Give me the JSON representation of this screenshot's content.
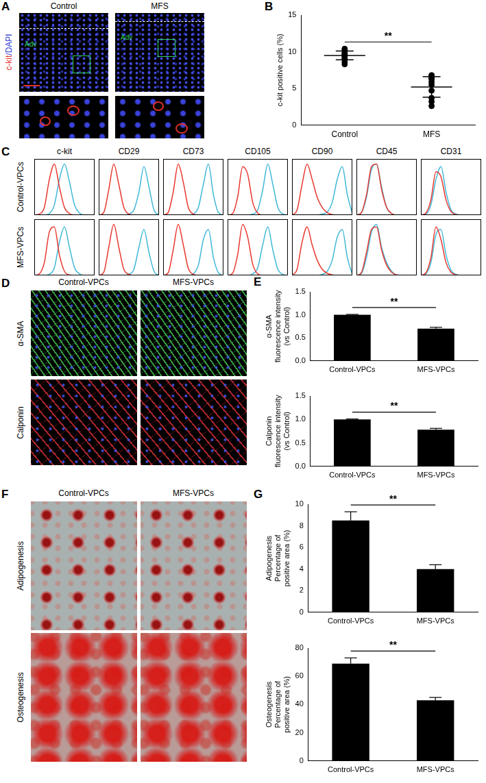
{
  "images": [
    {
      "panel": "A",
      "columns": [
        "Control",
        "MFS"
      ],
      "label": [
        {
          "text": "c-kit",
          "color": "#e0302a"
        },
        {
          "text": "/DAPI",
          "color": "#2a3ad8"
        }
      ],
      "annotation": "Adv"
    },
    {
      "panel": "D",
      "columns": [
        "Control-VPCs",
        "MFS-VPCs"
      ],
      "rows": [
        "α-SMA",
        "Calponin"
      ]
    },
    {
      "panel": "F",
      "columns": [
        "Control-VPCs",
        "MFS-VPCs"
      ],
      "rows": [
        "Adipogenesis",
        "Osteogenesis"
      ]
    }
  ],
  "chart_data": [
    {
      "panel": "B",
      "type": "scatter",
      "categories": [
        "Control",
        "MFS"
      ],
      "values": [
        [
          10.4,
          10.2,
          9.9,
          9.7,
          9.6,
          9.5,
          9.4,
          9.2,
          9.0,
          8.9,
          8.6,
          8.3
        ],
        [
          6.8,
          6.7,
          6.4,
          6.3,
          5.9,
          5.5,
          4.7,
          3.7,
          3.2,
          2.6
        ]
      ],
      "mean": [
        9.5,
        5.2
      ],
      "error": [
        0.6,
        1.4
      ],
      "y_label": "c-kit positive cells (%)",
      "ylim": [
        0,
        15
      ],
      "yticks": [
        0,
        5,
        10,
        15
      ],
      "annotation": "**",
      "color": "#000000",
      "marker": "circle",
      "grid": false
    },
    {
      "panel": "C",
      "type": "line",
      "columns": [
        "c-kit",
        "CD29",
        "CD73",
        "CD105",
        "CD90",
        "CD45",
        "CD31"
      ],
      "rows": [
        "Control-VPCs",
        "MFS-VPCs"
      ],
      "x": [
        0,
        1,
        2,
        3,
        4,
        5,
        6,
        7,
        8,
        9,
        10,
        11,
        12
      ],
      "xlim": [
        0,
        12
      ],
      "ylim": [
        0,
        1.1
      ],
      "tick_labels": false,
      "grid": false,
      "colors": [
        "#e8392f",
        "#41b8d8"
      ],
      "histograms": [
        [
          [
            [
              0,
              0.02,
              0.15,
              0.7,
              1.0,
              0.55,
              0.15,
              0.03,
              0,
              0,
              0,
              0,
              0
            ],
            [
              0,
              0,
              0,
              0.03,
              0.2,
              0.7,
              1.0,
              0.65,
              0.2,
              0.04,
              0,
              0,
              0
            ]
          ],
          [
            [
              0,
              0.05,
              0.5,
              1.0,
              0.6,
              0.15,
              0.02,
              0,
              0,
              0,
              0,
              0,
              0
            ],
            [
              0,
              0,
              0,
              0,
              0,
              0,
              0.02,
              0.1,
              0.45,
              0.95,
              0.55,
              0.1,
              0
            ]
          ],
          [
            [
              0,
              0.05,
              0.45,
              1.0,
              0.65,
              0.15,
              0.02,
              0,
              0,
              0,
              0,
              0,
              0
            ],
            [
              0,
              0,
              0,
              0,
              0,
              0,
              0.02,
              0.15,
              0.6,
              1.0,
              0.4,
              0.05,
              0
            ]
          ],
          [
            [
              0,
              0.03,
              0.35,
              0.95,
              0.8,
              0.25,
              0.04,
              0,
              0,
              0,
              0,
              0,
              0
            ],
            [
              0,
              0,
              0,
              0,
              0,
              0.02,
              0.1,
              0.5,
              1.0,
              0.6,
              0.15,
              0.02,
              0
            ]
          ],
          [
            [
              0,
              0.1,
              0.6,
              1.0,
              0.7,
              0.35,
              0.15,
              0.05,
              0.01,
              0,
              0,
              0,
              0
            ],
            [
              0,
              0,
              0,
              0,
              0,
              0,
              0.02,
              0.06,
              0.25,
              0.7,
              0.95,
              0.4,
              0.03
            ]
          ],
          [
            [
              0,
              0.05,
              0.4,
              0.95,
              1.0,
              0.5,
              0.15,
              0.03,
              0,
              0,
              0,
              0,
              0
            ],
            [
              0,
              0.05,
              0.35,
              0.9,
              1.0,
              0.55,
              0.15,
              0.03,
              0,
              0,
              0,
              0,
              0
            ]
          ],
          [
            [
              0,
              0.04,
              0.3,
              0.85,
              0.75,
              0.3,
              0.07,
              0.01,
              0,
              0,
              0,
              0,
              0
            ],
            [
              0,
              0.02,
              0.2,
              0.7,
              0.95,
              0.45,
              0.1,
              0.02,
              0,
              0,
              0,
              0,
              0
            ]
          ]
        ],
        [
          [
            [
              0,
              0.03,
              0.25,
              0.85,
              0.95,
              0.4,
              0.08,
              0.01,
              0,
              0,
              0,
              0,
              0
            ],
            [
              0,
              0,
              0,
              0.02,
              0.15,
              0.65,
              0.95,
              0.55,
              0.15,
              0.03,
              0,
              0,
              0
            ]
          ],
          [
            [
              0,
              0.06,
              0.55,
              1.0,
              0.55,
              0.12,
              0.02,
              0,
              0,
              0,
              0,
              0,
              0
            ],
            [
              0,
              0,
              0,
              0,
              0,
              0,
              0.02,
              0.12,
              0.55,
              0.9,
              0.45,
              0.08,
              0
            ]
          ],
          [
            [
              0,
              0.05,
              0.5,
              1.0,
              0.6,
              0.14,
              0.02,
              0,
              0,
              0,
              0,
              0,
              0
            ],
            [
              0,
              0,
              0,
              0,
              0,
              0,
              0.03,
              0.2,
              0.7,
              0.9,
              0.35,
              0.05,
              0
            ]
          ],
          [
            [
              0,
              0.04,
              0.4,
              1.0,
              0.75,
              0.22,
              0.03,
              0,
              0,
              0,
              0,
              0,
              0
            ],
            [
              0,
              0,
              0,
              0,
              0,
              0.03,
              0.15,
              0.6,
              0.95,
              0.5,
              0.12,
              0.02,
              0
            ]
          ],
          [
            [
              0,
              0.12,
              0.65,
              0.95,
              0.6,
              0.3,
              0.12,
              0.04,
              0.01,
              0,
              0,
              0,
              0
            ],
            [
              0,
              0,
              0,
              0,
              0,
              0,
              0.02,
              0.08,
              0.3,
              0.75,
              0.9,
              0.35,
              0.02
            ]
          ],
          [
            [
              0,
              0.06,
              0.45,
              0.9,
              0.95,
              0.5,
              0.2,
              0.06,
              0.01,
              0,
              0,
              0,
              0
            ],
            [
              0,
              0.04,
              0.35,
              0.85,
              1.0,
              0.55,
              0.25,
              0.08,
              0.01,
              0,
              0,
              0,
              0
            ]
          ],
          [
            [
              0,
              0.05,
              0.35,
              0.95,
              0.7,
              0.25,
              0.06,
              0.01,
              0,
              0,
              0,
              0,
              0
            ],
            [
              0,
              0.03,
              0.25,
              0.8,
              0.9,
              0.4,
              0.1,
              0.02,
              0,
              0,
              0,
              0,
              0
            ]
          ]
        ]
      ]
    },
    {
      "panel": "E",
      "type": "bar",
      "categories": [
        "Control-VPCs",
        "MFS-VPCs"
      ],
      "values": [
        1.0,
        0.7
      ],
      "error": [
        0.01,
        0.03
      ],
      "y_label": [
        "α-SMA",
        "fluorescence intensity",
        "(vs Control)"
      ],
      "ylim": [
        0,
        1.5
      ],
      "yticks": [
        {
          "value": 0,
          "label": "0.0"
        },
        {
          "value": 0.5,
          "label": "0.5"
        },
        {
          "value": 1,
          "label": "1.0"
        },
        {
          "value": 1.5,
          "label": "1.5"
        }
      ],
      "annotation": "**",
      "color": "#000000",
      "grid": false
    },
    {
      "type": "bar",
      "categories": [
        "Control-VPCs",
        "MFS-VPCs"
      ],
      "values": [
        1.0,
        0.78
      ],
      "error": [
        0.01,
        0.03
      ],
      "y_label": [
        "Calponin",
        "fluorescence intensity",
        "(vs Control)"
      ],
      "ylim": [
        0,
        1.5
      ],
      "yticks": [
        {
          "value": 0,
          "label": "0.0"
        },
        {
          "value": 0.5,
          "label": "0.5"
        },
        {
          "value": 1,
          "label": "1.0"
        },
        {
          "value": 1.5,
          "label": "1.5"
        }
      ],
      "annotation": "**",
      "color": "#000000",
      "grid": false
    },
    {
      "panel": "G",
      "type": "bar",
      "categories": [
        "Control-VPCs",
        "MFS-VPCs"
      ],
      "values": [
        8.5,
        4.0
      ],
      "error": [
        0.8,
        0.4
      ],
      "y_label": [
        "Adipogenesis",
        "Percentage of",
        "positive area (%)"
      ],
      "ylim": [
        0,
        10
      ],
      "yticks": [
        0,
        2,
        4,
        6,
        8,
        10
      ],
      "annotation": "**",
      "color": "#000000",
      "grid": false
    },
    {
      "type": "bar",
      "categories": [
        "Control-VPCs",
        "MFS-VPCs"
      ],
      "values": [
        69,
        43
      ],
      "error": [
        4,
        2
      ],
      "y_label": [
        "Osteogenesis",
        "Percentage of",
        "positive area (%)"
      ],
      "ylim": [
        0,
        80
      ],
      "yticks": [
        0,
        20,
        40,
        60,
        80
      ],
      "annotation": "**",
      "color": "#000000",
      "grid": false
    }
  ]
}
